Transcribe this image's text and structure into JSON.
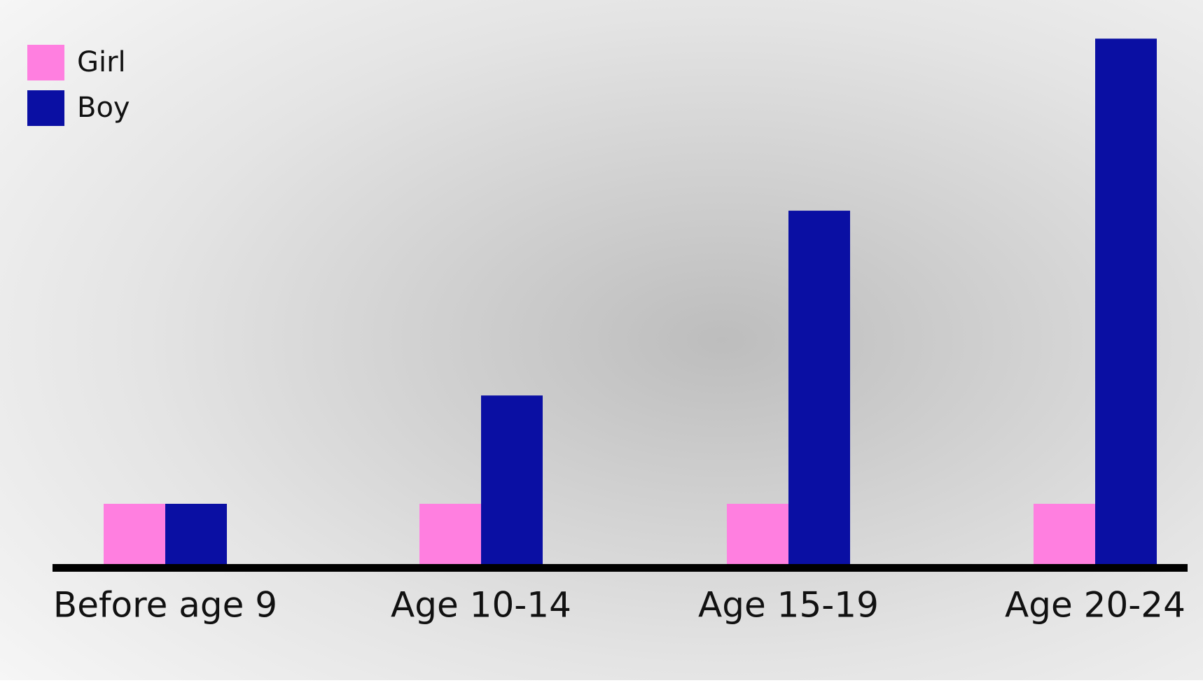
{
  "chart_data": {
    "type": "bar",
    "categories": [
      "Before age 9",
      "Age 10-14",
      "Age 15-19",
      "Age 20-24"
    ],
    "series": [
      {
        "name": "Girl",
        "color": "#ff7fe0",
        "values": [
          1,
          1,
          1,
          1
        ]
      },
      {
        "name": "Boy",
        "color": "#0a0fa3",
        "values": [
          1,
          2.7,
          5.6,
          8.3
        ]
      }
    ],
    "ylim": [
      0,
      8.5
    ],
    "legend": "top-left"
  }
}
